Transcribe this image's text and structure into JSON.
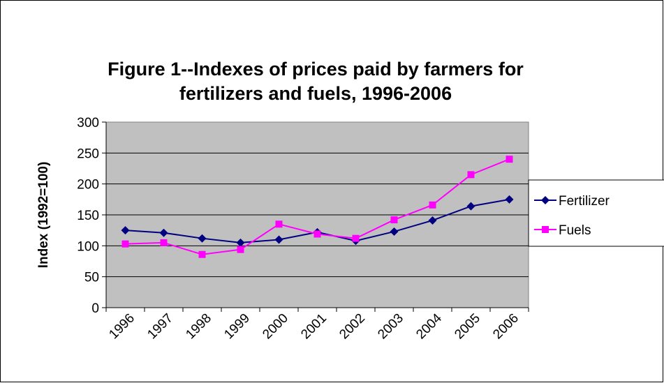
{
  "chart_data": {
    "type": "line",
    "title": [
      "Figure 1--Indexes of prices paid by farmers for",
      "fertilizers and fuels, 1996-2006"
    ],
    "y_label": "Index (1992=100)",
    "categories": [
      "1996",
      "1997",
      "1998",
      "1999",
      "2000",
      "2001",
      "2002",
      "2003",
      "2004",
      "2005",
      "2006"
    ],
    "series": [
      {
        "name": "Fertilizer",
        "color": "#000080",
        "marker": "diamond",
        "values": [
          125,
          121,
          112,
          105,
          110,
          122,
          108,
          123,
          141,
          164,
          175
        ]
      },
      {
        "name": "Fuels",
        "color": "#ff00ff",
        "marker": "square",
        "values": [
          103,
          105,
          86,
          94,
          135,
          119,
          112,
          142,
          166,
          215,
          240
        ]
      }
    ],
    "ylim": [
      0,
      300
    ],
    "yticks": [
      0,
      50,
      100,
      150,
      200,
      250,
      300
    ],
    "grid": true,
    "legend": "right",
    "plot_background": "#c0c0c0"
  }
}
